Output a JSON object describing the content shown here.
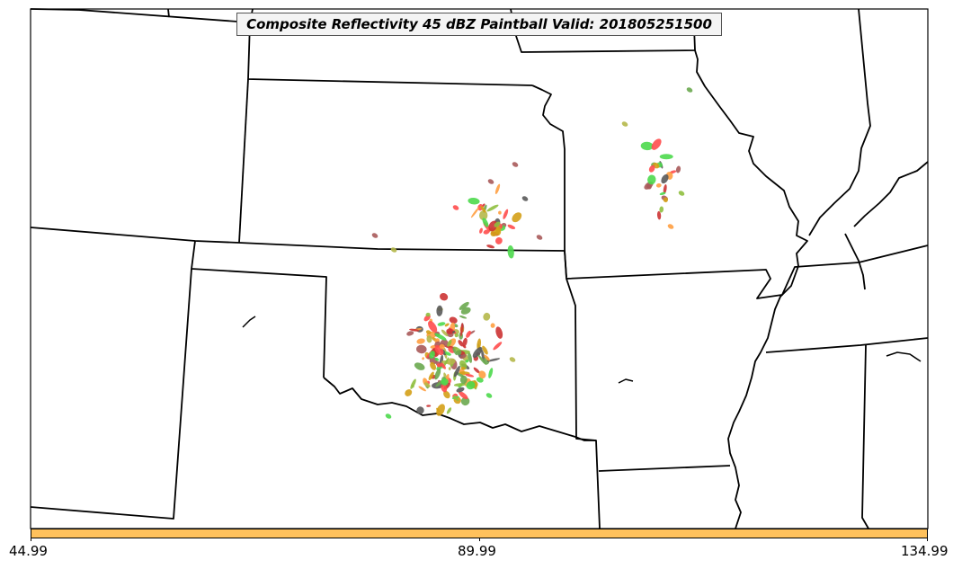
{
  "title": "Composite Reflectivity 45 dBZ Paintball Valid: 201805251500",
  "colorbar": {
    "fill_color": "#ffc15c",
    "ticks": [
      "44.99",
      "89.99",
      "134.99"
    ]
  },
  "paintball_colors": [
    "#ff4d4d",
    "#4dd94d",
    "#ff9f40",
    "#b5b84a",
    "#5a5a5a",
    "#a85a5a",
    "#6aa84f",
    "#d4a017",
    "#cc3333",
    "#8fbf3f"
  ],
  "map": {
    "region": "Central United States",
    "line_color": "#000000",
    "background": "#ffffff"
  }
}
